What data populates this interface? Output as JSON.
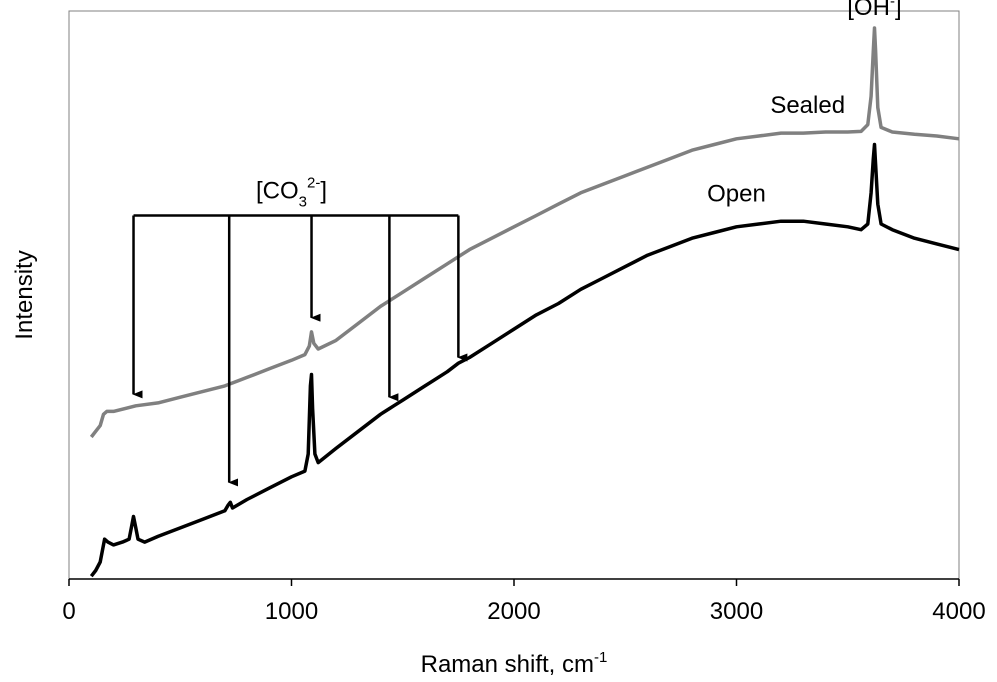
{
  "chart_data": {
    "type": "line",
    "xlabel_main": "Raman shift, cm",
    "xlabel_sup": "-1",
    "ylabel": "Intensity",
    "xlim": [
      0,
      4000
    ],
    "ylim": [
      0,
      1
    ],
    "x_ticks": [
      0,
      1000,
      2000,
      3000,
      4000
    ],
    "y_ticks_shown": false,
    "grid": false,
    "legend": "none",
    "series": [
      {
        "name": "Sealed",
        "color": "#808080",
        "points": [
          [
            100,
            0.25
          ],
          [
            120,
            0.26
          ],
          [
            140,
            0.27
          ],
          [
            155,
            0.29
          ],
          [
            170,
            0.295
          ],
          [
            200,
            0.295
          ],
          [
            300,
            0.305
          ],
          [
            400,
            0.31
          ],
          [
            500,
            0.32
          ],
          [
            600,
            0.33
          ],
          [
            700,
            0.34
          ],
          [
            800,
            0.355
          ],
          [
            900,
            0.37
          ],
          [
            1000,
            0.385
          ],
          [
            1060,
            0.395
          ],
          [
            1080,
            0.41
          ],
          [
            1090,
            0.435
          ],
          [
            1100,
            0.415
          ],
          [
            1120,
            0.405
          ],
          [
            1200,
            0.42
          ],
          [
            1300,
            0.45
          ],
          [
            1400,
            0.48
          ],
          [
            1500,
            0.505
          ],
          [
            1600,
            0.53
          ],
          [
            1700,
            0.555
          ],
          [
            1800,
            0.58
          ],
          [
            1900,
            0.6
          ],
          [
            2000,
            0.62
          ],
          [
            2100,
            0.64
          ],
          [
            2200,
            0.66
          ],
          [
            2300,
            0.68
          ],
          [
            2400,
            0.695
          ],
          [
            2500,
            0.71
          ],
          [
            2600,
            0.725
          ],
          [
            2700,
            0.74
          ],
          [
            2800,
            0.755
          ],
          [
            2900,
            0.765
          ],
          [
            3000,
            0.775
          ],
          [
            3100,
            0.78
          ],
          [
            3200,
            0.785
          ],
          [
            3300,
            0.785
          ],
          [
            3400,
            0.787
          ],
          [
            3500,
            0.787
          ],
          [
            3560,
            0.788
          ],
          [
            3590,
            0.8
          ],
          [
            3605,
            0.85
          ],
          [
            3615,
            0.93
          ],
          [
            3620,
            0.97
          ],
          [
            3625,
            0.93
          ],
          [
            3635,
            0.83
          ],
          [
            3650,
            0.795
          ],
          [
            3700,
            0.787
          ],
          [
            3800,
            0.783
          ],
          [
            3900,
            0.78
          ],
          [
            4000,
            0.775
          ]
        ]
      },
      {
        "name": "Open",
        "color": "#000000",
        "points": [
          [
            100,
            0.005
          ],
          [
            120,
            0.015
          ],
          [
            140,
            0.03
          ],
          [
            150,
            0.05
          ],
          [
            160,
            0.07
          ],
          [
            175,
            0.065
          ],
          [
            200,
            0.06
          ],
          [
            240,
            0.065
          ],
          [
            270,
            0.07
          ],
          [
            280,
            0.09
          ],
          [
            290,
            0.11
          ],
          [
            300,
            0.09
          ],
          [
            310,
            0.07
          ],
          [
            340,
            0.065
          ],
          [
            400,
            0.075
          ],
          [
            500,
            0.09
          ],
          [
            600,
            0.105
          ],
          [
            700,
            0.12
          ],
          [
            715,
            0.13
          ],
          [
            725,
            0.135
          ],
          [
            735,
            0.125
          ],
          [
            800,
            0.14
          ],
          [
            900,
            0.16
          ],
          [
            1000,
            0.18
          ],
          [
            1060,
            0.19
          ],
          [
            1075,
            0.22
          ],
          [
            1085,
            0.34
          ],
          [
            1090,
            0.36
          ],
          [
            1095,
            0.3
          ],
          [
            1105,
            0.22
          ],
          [
            1120,
            0.205
          ],
          [
            1200,
            0.23
          ],
          [
            1300,
            0.26
          ],
          [
            1400,
            0.29
          ],
          [
            1440,
            0.3
          ],
          [
            1460,
            0.305
          ],
          [
            1500,
            0.315
          ],
          [
            1600,
            0.34
          ],
          [
            1700,
            0.365
          ],
          [
            1750,
            0.38
          ],
          [
            1800,
            0.39
          ],
          [
            1900,
            0.415
          ],
          [
            2000,
            0.44
          ],
          [
            2100,
            0.465
          ],
          [
            2200,
            0.485
          ],
          [
            2300,
            0.51
          ],
          [
            2400,
            0.53
          ],
          [
            2500,
            0.55
          ],
          [
            2600,
            0.57
          ],
          [
            2700,
            0.585
          ],
          [
            2800,
            0.6
          ],
          [
            2900,
            0.61
          ],
          [
            3000,
            0.62
          ],
          [
            3100,
            0.625
          ],
          [
            3200,
            0.63
          ],
          [
            3300,
            0.63
          ],
          [
            3400,
            0.625
          ],
          [
            3500,
            0.62
          ],
          [
            3560,
            0.615
          ],
          [
            3590,
            0.625
          ],
          [
            3605,
            0.68
          ],
          [
            3615,
            0.74
          ],
          [
            3620,
            0.765
          ],
          [
            3625,
            0.73
          ],
          [
            3635,
            0.66
          ],
          [
            3650,
            0.625
          ],
          [
            3700,
            0.615
          ],
          [
            3800,
            0.6
          ],
          [
            3900,
            0.59
          ],
          [
            4000,
            0.58
          ]
        ]
      }
    ],
    "series_labels": [
      {
        "text": "Sealed",
        "x": 3320,
        "y": 0.82
      },
      {
        "text": "Open",
        "x": 3000,
        "y": 0.665
      }
    ],
    "annotations": {
      "oh": {
        "text_main": "[OH",
        "text_sup": "-",
        "text_end": "]",
        "x": 3620,
        "y": 1.0
      },
      "co3": {
        "text_main": "[CO",
        "text_sub": "3",
        "text_sup": "2-",
        "text_end": "]",
        "label_x": 1000,
        "label_y": 0.67,
        "bracket_y": 0.64,
        "bracket_x": [
          290,
          1750
        ],
        "arrows": [
          {
            "x": 290,
            "y_end": 0.325
          },
          {
            "x": 720,
            "y_end": 0.17
          },
          {
            "x": 1090,
            "y_end": 0.46
          },
          {
            "x": 1440,
            "y_end": 0.32
          },
          {
            "x": 1750,
            "y_end": 0.39
          }
        ]
      }
    }
  }
}
